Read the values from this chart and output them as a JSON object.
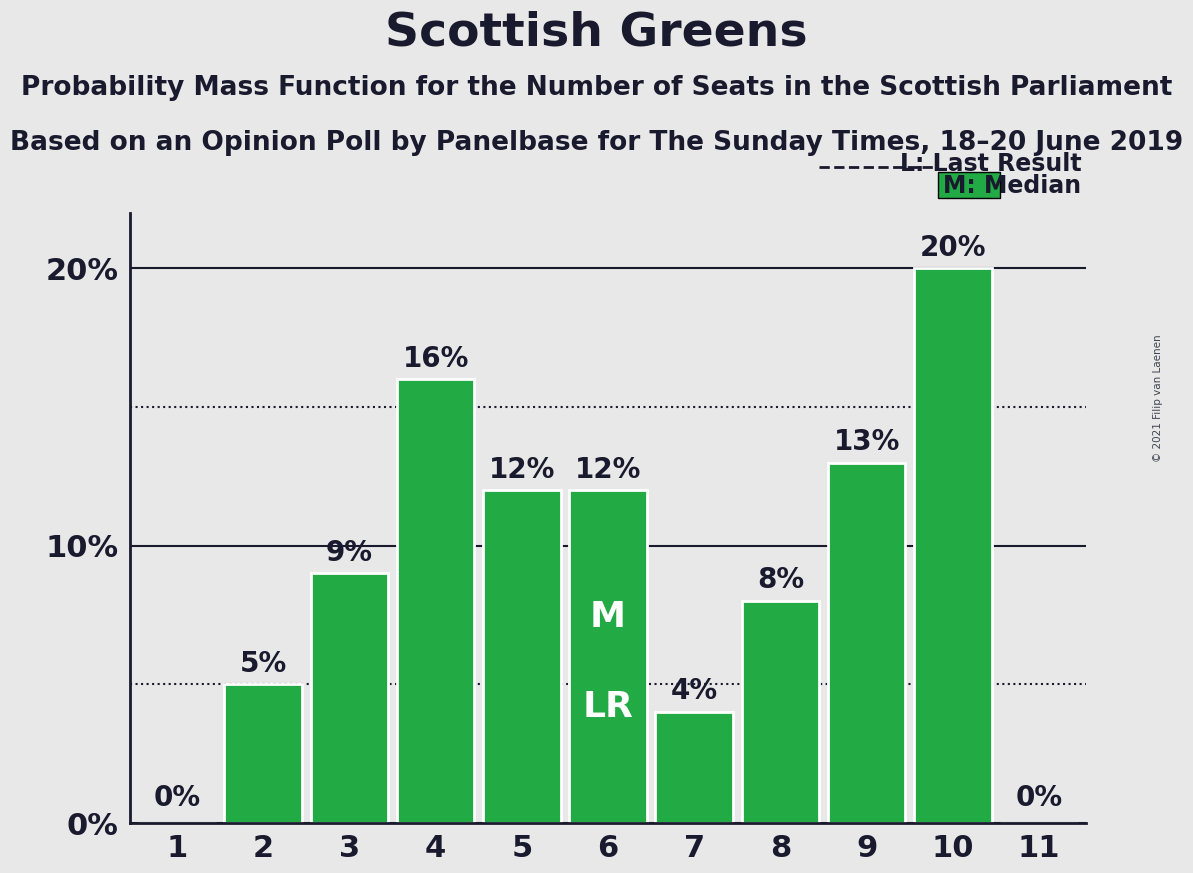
{
  "title": "Scottish Greens",
  "subtitle1": "Probability Mass Function for the Number of Seats in the Scottish Parliament",
  "subtitle2": "Based on an Opinion Poll by Panelbase for The Sunday Times, 18–20 June 2019",
  "copyright": "© 2021 Filip van Laenen",
  "categories": [
    1,
    2,
    3,
    4,
    5,
    6,
    7,
    8,
    9,
    10,
    11
  ],
  "values": [
    0,
    5,
    9,
    16,
    12,
    12,
    4,
    8,
    13,
    20,
    0
  ],
  "bar_color": "#22aa44",
  "bar_edge_color": "#ffffff",
  "background_color": "#e8e8e8",
  "text_color": "#1a1a2e",
  "ylim": [
    0,
    22
  ],
  "yticks_solid": [
    0,
    10,
    20
  ],
  "ytick_labels": [
    "0%",
    "10%",
    "20%"
  ],
  "yticks_dotted": [
    5,
    15
  ],
  "median_seat": 6,
  "last_result_seat": 6,
  "legend_lr_label": "L: Last Result",
  "legend_m_label": "M: Median",
  "title_fontsize": 34,
  "subtitle_fontsize": 19,
  "bar_label_fontsize": 20,
  "axis_fontsize": 22,
  "m_lr_fontsize": 26
}
